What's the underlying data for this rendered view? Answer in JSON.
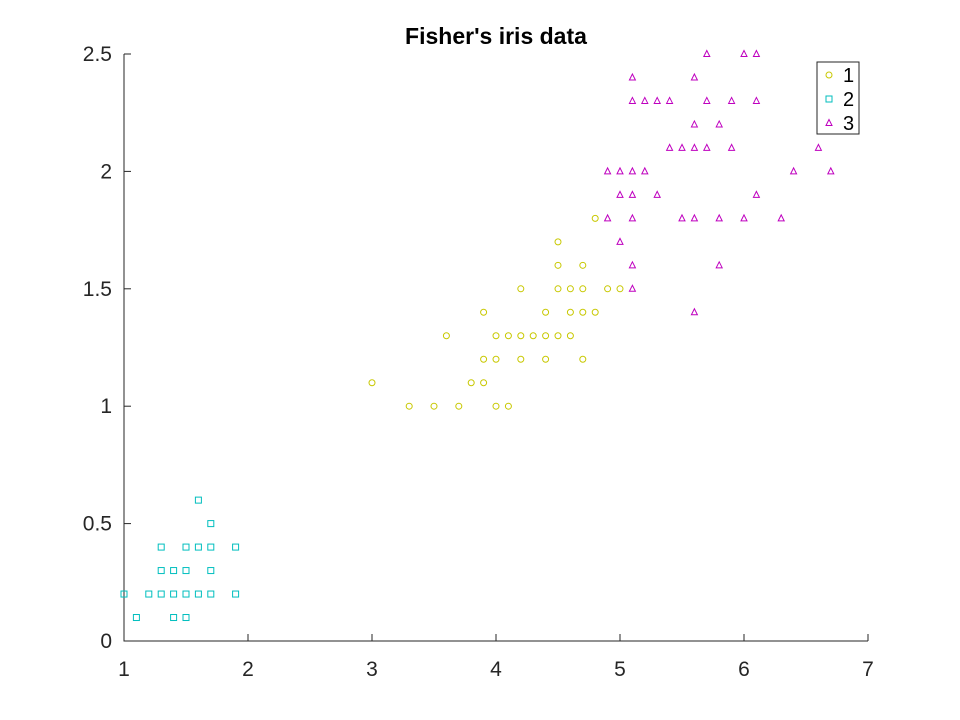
{
  "chart_data": {
    "type": "scatter",
    "title": "Fisher's iris data",
    "xlabel": "",
    "ylabel": "",
    "xlim": [
      1,
      7
    ],
    "ylim": [
      0,
      2.5
    ],
    "xticks": [
      1,
      2,
      3,
      4,
      5,
      6,
      7
    ],
    "yticks": [
      0,
      0.5,
      1,
      1.5,
      2,
      2.5
    ],
    "xtick_labels": [
      "1",
      "2",
      "3",
      "4",
      "5",
      "6",
      "7"
    ],
    "ytick_labels": [
      "0",
      "0.5",
      "1",
      "1.5",
      "2",
      "2.5"
    ],
    "grid": false,
    "legend": "top-right",
    "series": [
      {
        "name": "1",
        "marker": "circle",
        "color": "#c8c800",
        "points": [
          [
            3.0,
            1.1
          ],
          [
            3.3,
            1.0
          ],
          [
            3.5,
            1.0
          ],
          [
            3.6,
            1.3
          ],
          [
            3.7,
            1.0
          ],
          [
            3.8,
            1.1
          ],
          [
            3.9,
            1.4
          ],
          [
            3.9,
            1.2
          ],
          [
            3.9,
            1.1
          ],
          [
            4.0,
            1.3
          ],
          [
            4.0,
            1.2
          ],
          [
            4.0,
            1.0
          ],
          [
            4.1,
            1.3
          ],
          [
            4.1,
            1.0
          ],
          [
            4.2,
            1.5
          ],
          [
            4.2,
            1.3
          ],
          [
            4.2,
            1.2
          ],
          [
            4.3,
            1.3
          ],
          [
            4.4,
            1.4
          ],
          [
            4.4,
            1.3
          ],
          [
            4.4,
            1.2
          ],
          [
            4.5,
            1.7
          ],
          [
            4.5,
            1.6
          ],
          [
            4.5,
            1.5
          ],
          [
            4.5,
            1.3
          ],
          [
            4.6,
            1.5
          ],
          [
            4.6,
            1.4
          ],
          [
            4.6,
            1.3
          ],
          [
            4.7,
            1.6
          ],
          [
            4.7,
            1.5
          ],
          [
            4.7,
            1.4
          ],
          [
            4.7,
            1.2
          ],
          [
            4.8,
            1.8
          ],
          [
            4.8,
            1.4
          ],
          [
            4.9,
            1.5
          ],
          [
            5.0,
            1.5
          ]
        ]
      },
      {
        "name": "2",
        "marker": "square",
        "color": "#00bebe",
        "points": [
          [
            1.0,
            0.2
          ],
          [
            1.1,
            0.1
          ],
          [
            1.2,
            0.2
          ],
          [
            1.3,
            0.4
          ],
          [
            1.3,
            0.3
          ],
          [
            1.3,
            0.2
          ],
          [
            1.4,
            0.3
          ],
          [
            1.4,
            0.2
          ],
          [
            1.4,
            0.1
          ],
          [
            1.5,
            0.4
          ],
          [
            1.5,
            0.3
          ],
          [
            1.5,
            0.2
          ],
          [
            1.5,
            0.1
          ],
          [
            1.6,
            0.6
          ],
          [
            1.6,
            0.4
          ],
          [
            1.6,
            0.2
          ],
          [
            1.7,
            0.5
          ],
          [
            1.7,
            0.4
          ],
          [
            1.7,
            0.3
          ],
          [
            1.7,
            0.2
          ],
          [
            1.9,
            0.4
          ],
          [
            1.9,
            0.2
          ]
        ]
      },
      {
        "name": "3",
        "marker": "triangle",
        "color": "#bf00bf",
        "points": [
          [
            4.9,
            2.0
          ],
          [
            4.9,
            1.8
          ],
          [
            5.0,
            2.0
          ],
          [
            5.0,
            1.9
          ],
          [
            5.0,
            1.7
          ],
          [
            5.1,
            2.4
          ],
          [
            5.1,
            2.3
          ],
          [
            5.1,
            2.0
          ],
          [
            5.1,
            1.9
          ],
          [
            5.1,
            1.8
          ],
          [
            5.1,
            1.6
          ],
          [
            5.1,
            1.5
          ],
          [
            5.2,
            2.3
          ],
          [
            5.2,
            2.0
          ],
          [
            5.3,
            2.3
          ],
          [
            5.3,
            1.9
          ],
          [
            5.4,
            2.3
          ],
          [
            5.4,
            2.1
          ],
          [
            5.5,
            2.1
          ],
          [
            5.5,
            1.8
          ],
          [
            5.6,
            2.4
          ],
          [
            5.6,
            2.2
          ],
          [
            5.6,
            2.1
          ],
          [
            5.6,
            1.8
          ],
          [
            5.6,
            1.4
          ],
          [
            5.7,
            2.5
          ],
          [
            5.7,
            2.3
          ],
          [
            5.7,
            2.1
          ],
          [
            5.8,
            2.2
          ],
          [
            5.8,
            1.8
          ],
          [
            5.8,
            1.6
          ],
          [
            5.9,
            2.3
          ],
          [
            5.9,
            2.1
          ],
          [
            6.0,
            2.5
          ],
          [
            6.0,
            1.8
          ],
          [
            6.1,
            2.5
          ],
          [
            6.1,
            2.3
          ],
          [
            6.1,
            1.9
          ],
          [
            6.3,
            1.8
          ],
          [
            6.4,
            2.0
          ],
          [
            6.6,
            2.1
          ],
          [
            6.7,
            2.0
          ]
        ]
      }
    ]
  }
}
